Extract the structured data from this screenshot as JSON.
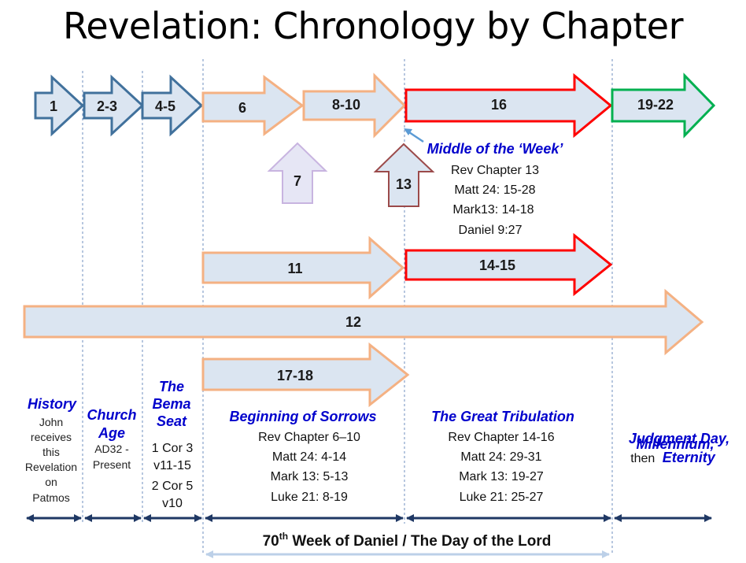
{
  "title": "Revelation: Chronology by Chapter",
  "arrows": {
    "a1": "1",
    "a2_3": "2-3",
    "a4_5": "4-5",
    "a6": "6",
    "a8_10": "8-10",
    "a16": "16",
    "a19_22": "19-22",
    "a7": "7",
    "a13": "13",
    "a11": "11",
    "a14_15": "14-15",
    "a12": "12",
    "a17_18": "17-18"
  },
  "middle_week": {
    "heading": "Middle of the ‘Week’",
    "lines": [
      "Rev Chapter 13",
      "Matt 24: 15-28",
      "Mark13: 14-18",
      "Daniel 9:27"
    ]
  },
  "periods": {
    "history": {
      "heading": "History",
      "lines": [
        "John",
        "receives",
        "this",
        "Revelation",
        "on",
        "Patmos"
      ]
    },
    "church_age": {
      "heading": [
        "Church",
        "Age"
      ],
      "lines": [
        "AD32 -",
        "Present"
      ]
    },
    "bema": {
      "heading": [
        "The",
        "Bema",
        "Seat"
      ],
      "lines": [
        "1 Cor 3",
        "v11-15",
        "2 Cor 5",
        "v10"
      ]
    },
    "sorrows": {
      "heading": "Beginning of Sorrows",
      "lines": [
        "Rev Chapter 6–10",
        "Matt 24: 4-14",
        "Mark 13: 5-13",
        "Luke 21: 8-19"
      ]
    },
    "tribulation": {
      "heading": "The Great Tribulation",
      "lines": [
        "Rev Chapter 14-16",
        "Matt 24: 29-31",
        "Mark 13: 19-27",
        "Luke 21: 25-27"
      ]
    },
    "millennium": {
      "heading_1": "Millennium,",
      "heading_2": "Judgment Day,",
      "then": "then",
      "eternity": "Eternity"
    }
  },
  "week_label": {
    "prefix": "70",
    "sup": "th",
    "suffix": " Week of Daniel / The Day of the Lord"
  },
  "colors": {
    "blue_arrow": "#41719c",
    "orange_arrow": "#f4b183",
    "red_arrow": "#ff0000",
    "green_arrow": "#00b050",
    "fill": "#dbe5f1",
    "heading_text": "#0000cc",
    "timeline": "#1f3864"
  }
}
